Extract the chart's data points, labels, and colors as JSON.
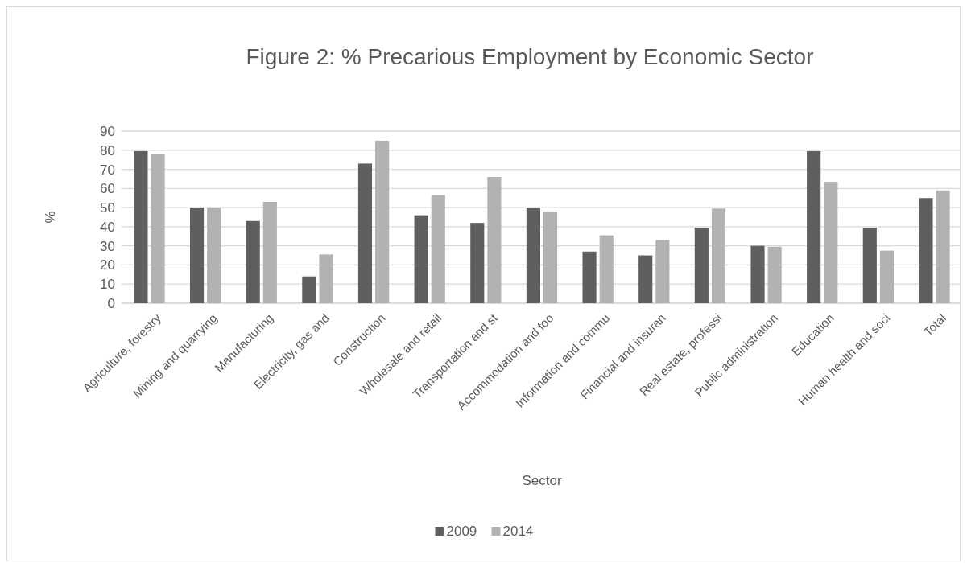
{
  "chart_data": {
    "type": "bar",
    "title": "Figure 2: % Precarious Employment by Economic Sector",
    "xlabel": "Sector",
    "ylabel": "%",
    "categories": [
      "Agriculture, forestry",
      "Mining and quarrying",
      "Manufacturing",
      "Electricity, gas and",
      "Construction",
      "Wholesale and retail",
      "Transportation and st",
      "Accommodation and foo",
      "Information and commu",
      "Financial and insuran",
      "Real estate, professi",
      "Public administration",
      "Education",
      "Human health and soci",
      "Total"
    ],
    "series": [
      {
        "name": "2009",
        "color": "#5f5f5f",
        "values": [
          79.5,
          50,
          43,
          14,
          73,
          46,
          42,
          50,
          27,
          25,
          39.5,
          30,
          79.5,
          39.5,
          55
        ]
      },
      {
        "name": "2014",
        "color": "#b2b2b2",
        "values": [
          78,
          50,
          53,
          25.5,
          85,
          56.5,
          66,
          48,
          35.5,
          33,
          49.5,
          29.5,
          63.5,
          27.5,
          59
        ]
      }
    ],
    "ylim": [
      0,
      90
    ],
    "yticks": [
      0,
      10,
      20,
      30,
      40,
      50,
      60,
      70,
      80,
      90
    ],
    "grid": "y",
    "legend": "bottom"
  }
}
